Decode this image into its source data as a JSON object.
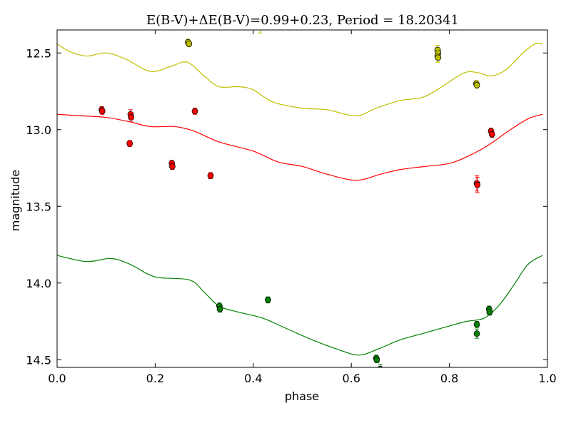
{
  "chart_data": {
    "type": "scatter",
    "title": "E(B-V)+ΔE(B-V)=0.99+0.23, Period = 18.20341",
    "xlabel": "phase",
    "ylabel": "magnitude",
    "xlim": [
      0.0,
      1.0
    ],
    "ylim": [
      12.35,
      14.55
    ],
    "y_inverted": true,
    "x_ticks": [
      0.0,
      0.2,
      0.4,
      0.6,
      0.8,
      1.0
    ],
    "x_tick_labels": [
      "0.0",
      "0.2",
      "0.4",
      "0.6",
      "0.8",
      "1.0"
    ],
    "y_ticks": [
      12.5,
      13.0,
      13.5,
      14.0,
      14.5
    ],
    "y_tick_labels": [
      "12.5",
      "13.0",
      "13.5",
      "14.0",
      "14.5"
    ],
    "grid": false,
    "series": [
      {
        "color": "#bfbf00",
        "curve": [
          [
            0.0,
            12.44
          ],
          [
            0.025,
            12.49
          ],
          [
            0.06,
            12.52
          ],
          [
            0.1,
            12.5
          ],
          [
            0.14,
            12.54
          ],
          [
            0.19,
            12.62
          ],
          [
            0.23,
            12.59
          ],
          [
            0.265,
            12.56
          ],
          [
            0.3,
            12.65
          ],
          [
            0.33,
            12.72
          ],
          [
            0.37,
            12.72
          ],
          [
            0.4,
            12.74
          ],
          [
            0.44,
            12.82
          ],
          [
            0.5,
            12.86
          ],
          [
            0.55,
            12.87
          ],
          [
            0.61,
            12.91
          ],
          [
            0.65,
            12.86
          ],
          [
            0.7,
            12.81
          ],
          [
            0.745,
            12.79
          ],
          [
            0.78,
            12.73
          ],
          [
            0.83,
            12.63
          ],
          [
            0.86,
            12.63
          ],
          [
            0.885,
            12.65
          ],
          [
            0.915,
            12.61
          ],
          [
            0.95,
            12.5
          ],
          [
            0.975,
            12.44
          ],
          [
            0.99,
            12.44
          ]
        ],
        "points": [
          {
            "x": 0.267,
            "y": 12.43,
            "err": 0.02
          },
          {
            "x": 0.269,
            "y": 12.44,
            "err": 0.02
          },
          {
            "x": 0.776,
            "y": 12.48,
            "err": 0.03
          },
          {
            "x": 0.777,
            "y": 12.5,
            "err": 0.03
          },
          {
            "x": 0.776,
            "y": 12.52,
            "err": 0.04
          },
          {
            "x": 0.777,
            "y": 12.53,
            "err": 0.03
          },
          {
            "x": 0.855,
            "y": 12.7,
            "err": 0.02
          },
          {
            "x": 0.856,
            "y": 12.71,
            "err": 0.02
          },
          {
            "x": 0.414,
            "y": 12.33,
            "err": 0.04
          }
        ]
      },
      {
        "color": "#ff0000",
        "curve": [
          [
            0.0,
            12.9
          ],
          [
            0.05,
            12.91
          ],
          [
            0.1,
            12.92
          ],
          [
            0.15,
            12.95
          ],
          [
            0.19,
            12.98
          ],
          [
            0.24,
            12.98
          ],
          [
            0.28,
            13.01
          ],
          [
            0.33,
            13.08
          ],
          [
            0.4,
            13.14
          ],
          [
            0.45,
            13.21
          ],
          [
            0.5,
            13.24
          ],
          [
            0.55,
            13.29
          ],
          [
            0.61,
            13.33
          ],
          [
            0.66,
            13.29
          ],
          [
            0.7,
            13.26
          ],
          [
            0.75,
            13.24
          ],
          [
            0.8,
            13.22
          ],
          [
            0.84,
            13.17
          ],
          [
            0.88,
            13.1
          ],
          [
            0.92,
            13.01
          ],
          [
            0.96,
            12.93
          ],
          [
            0.99,
            12.9
          ]
        ],
        "points": [
          {
            "x": 0.091,
            "y": 12.87,
            "err": 0.02
          },
          {
            "x": 0.092,
            "y": 12.88,
            "err": 0.02
          },
          {
            "x": 0.15,
            "y": 12.9,
            "err": 0.03
          },
          {
            "x": 0.151,
            "y": 12.92,
            "err": 0.03
          },
          {
            "x": 0.148,
            "y": 13.09,
            "err": 0.02
          },
          {
            "x": 0.234,
            "y": 13.22,
            "err": 0.02
          },
          {
            "x": 0.235,
            "y": 13.24,
            "err": 0.02
          },
          {
            "x": 0.281,
            "y": 12.88,
            "err": 0.02
          },
          {
            "x": 0.313,
            "y": 13.3,
            "err": 0.02
          },
          {
            "x": 0.856,
            "y": 13.35,
            "err": 0.05
          },
          {
            "x": 0.857,
            "y": 13.36,
            "err": 0.05
          },
          {
            "x": 0.885,
            "y": 13.01,
            "err": 0.02
          },
          {
            "x": 0.887,
            "y": 13.03,
            "err": 0.02
          }
        ]
      },
      {
        "color": "#008000",
        "curve": [
          [
            0.0,
            13.82
          ],
          [
            0.06,
            13.86
          ],
          [
            0.11,
            13.84
          ],
          [
            0.15,
            13.88
          ],
          [
            0.2,
            13.96
          ],
          [
            0.27,
            13.98
          ],
          [
            0.3,
            14.06
          ],
          [
            0.33,
            14.15
          ],
          [
            0.37,
            14.19
          ],
          [
            0.42,
            14.23
          ],
          [
            0.47,
            14.3
          ],
          [
            0.52,
            14.37
          ],
          [
            0.57,
            14.43
          ],
          [
            0.615,
            14.47
          ],
          [
            0.655,
            14.43
          ],
          [
            0.7,
            14.37
          ],
          [
            0.745,
            14.33
          ],
          [
            0.8,
            14.28
          ],
          [
            0.835,
            14.25
          ],
          [
            0.87,
            14.23
          ],
          [
            0.9,
            14.15
          ],
          [
            0.93,
            14.02
          ],
          [
            0.96,
            13.88
          ],
          [
            0.99,
            13.82
          ]
        ],
        "points": [
          {
            "x": 0.331,
            "y": 14.15,
            "err": 0.02
          },
          {
            "x": 0.332,
            "y": 14.17,
            "err": 0.02
          },
          {
            "x": 0.43,
            "y": 14.11,
            "err": 0.02
          },
          {
            "x": 0.651,
            "y": 14.49,
            "err": 0.02
          },
          {
            "x": 0.652,
            "y": 14.5,
            "err": 0.02
          },
          {
            "x": 0.659,
            "y": 14.56,
            "err": 0.03
          },
          {
            "x": 0.856,
            "y": 14.27,
            "err": 0.02
          },
          {
            "x": 0.856,
            "y": 14.33,
            "err": 0.03
          },
          {
            "x": 0.881,
            "y": 14.17,
            "err": 0.02
          },
          {
            "x": 0.882,
            "y": 14.19,
            "err": 0.02
          }
        ]
      }
    ]
  }
}
